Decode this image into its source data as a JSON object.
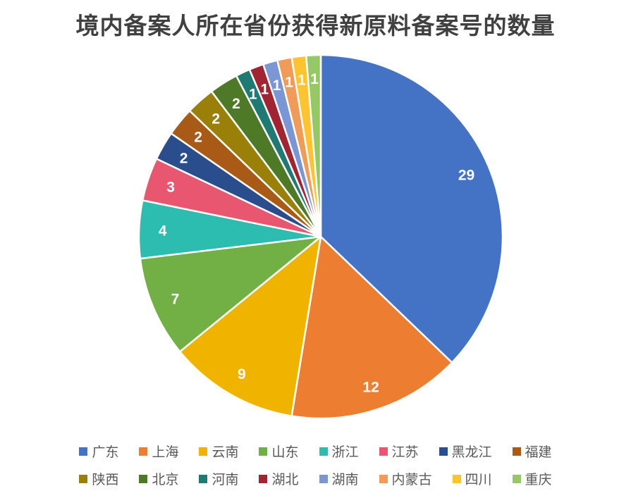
{
  "page": {
    "background_color": "#ffffff",
    "title_color": "#404040",
    "legend_text_color": "#595959",
    "data_label_color": "#ffffff"
  },
  "chart_data": {
    "type": "pie",
    "title": "境内备案人所在省份获得新原料备案号的数量",
    "legend_position": "bottom",
    "legend_rows": 2,
    "data_labels": "value",
    "start_angle_deg": 0,
    "direction": "clockwise",
    "series": [
      {
        "name": "广东",
        "value": 29,
        "color": "#4472C4"
      },
      {
        "name": "上海",
        "value": 12,
        "color": "#ED7D31"
      },
      {
        "name": "云南",
        "value": 9,
        "color": "#F0B400"
      },
      {
        "name": "山东",
        "value": 7,
        "color": "#72B045"
      },
      {
        "name": "浙江",
        "value": 4,
        "color": "#2CBDB0"
      },
      {
        "name": "江苏",
        "value": 3,
        "color": "#E8566F"
      },
      {
        "name": "黑龙江",
        "value": 2,
        "color": "#2A4D8E"
      },
      {
        "name": "福建",
        "value": 2,
        "color": "#A85A16"
      },
      {
        "name": "陕西",
        "value": 2,
        "color": "#9A8009"
      },
      {
        "name": "北京",
        "value": 2,
        "color": "#4E7A27"
      },
      {
        "name": "河南",
        "value": 1,
        "color": "#1E7A73"
      },
      {
        "name": "湖北",
        "value": 1,
        "color": "#A12433"
      },
      {
        "name": "湖南",
        "value": 1,
        "color": "#7B96D5"
      },
      {
        "name": "内蒙古",
        "value": 1,
        "color": "#F09C58"
      },
      {
        "name": "四川",
        "value": 1,
        "color": "#FDC430"
      },
      {
        "name": "重庆",
        "value": 1,
        "color": "#96C965"
      }
    ]
  }
}
